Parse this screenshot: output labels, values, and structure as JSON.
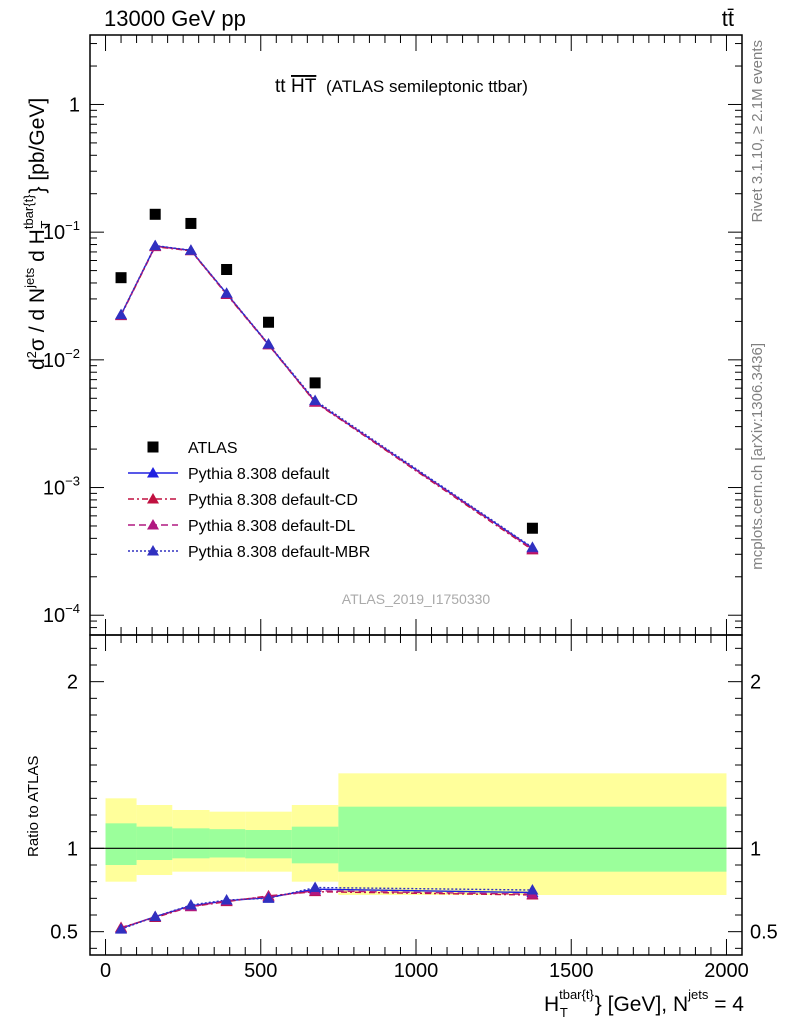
{
  "header": {
    "left": "13000 GeV pp",
    "right": "tt̄"
  },
  "side_labels": {
    "rivet": "Rivet 3.1.10, ≥ 2.1M events",
    "mcplots": "mcplots.cern.ch [arXiv:1306.3436]"
  },
  "chart_data": {
    "type": "line",
    "title_main": "tt",
    "title_over": "HT",
    "title_rest": "(ATLAS semileptonic ttbar)",
    "watermark": "ATLAS_2019_I1750330",
    "ylabel": "d²σ / d N^jets d H_T^tbar{t} [pb/GeV]",
    "xlabel": "H_T^tbar{t} [GeV], N^jets = 4",
    "ratio_ylabel": "Ratio to ATLAS",
    "xlim": [
      -50,
      2050
    ],
    "ylim_log": [
      7e-05,
      3.5
    ],
    "ratio_ylim": [
      0.36,
      2.28
    ],
    "x_ticks": [
      0,
      500,
      1000,
      1500,
      2000
    ],
    "ratio_ticks": [
      0.5,
      1,
      2
    ],
    "y_ticks": [
      {
        "value": 1,
        "base": "1",
        "exp": ""
      },
      {
        "value": 0.1,
        "base": "10",
        "exp": "−1"
      },
      {
        "value": 0.01,
        "base": "10",
        "exp": "−2"
      },
      {
        "value": 0.001,
        "base": "10",
        "exp": "−3"
      },
      {
        "value": 0.0001,
        "base": "10",
        "exp": "−4"
      }
    ],
    "data_points": {
      "name": "ATLAS",
      "x": [
        50,
        160,
        275,
        390,
        525,
        675,
        1375
      ],
      "y": [
        0.044,
        0.138,
        0.117,
        0.051,
        0.0197,
        0.0066,
        0.00048
      ]
    },
    "series": [
      {
        "name": "Pythia 8.308 default",
        "color": "#2020e0",
        "dash": "solid",
        "x": [
          50,
          160,
          275,
          390,
          525,
          675,
          1375
        ],
        "y": [
          0.0225,
          0.078,
          0.072,
          0.033,
          0.0132,
          0.0047,
          0.000335
        ],
        "ratio": [
          0.52,
          0.59,
          0.655,
          0.685,
          0.705,
          0.755,
          0.735
        ]
      },
      {
        "name": "Pythia 8.308 default-CD",
        "color": "#c01040",
        "dash": "6,3,2,3",
        "x": [
          50,
          160,
          275,
          390,
          525,
          675,
          1375
        ],
        "y": [
          0.0222,
          0.077,
          0.0715,
          0.0325,
          0.0131,
          0.00465,
          0.000325
        ],
        "ratio": [
          0.525,
          0.585,
          0.65,
          0.68,
          0.715,
          0.74,
          0.72
        ]
      },
      {
        "name": "Pythia 8.308 default-DL",
        "color": "#b01880",
        "dash": "7,4",
        "x": [
          50,
          160,
          275,
          390,
          525,
          675,
          1375
        ],
        "y": [
          0.0224,
          0.0775,
          0.0718,
          0.0328,
          0.0132,
          0.0047,
          0.00033
        ],
        "ratio": [
          0.52,
          0.59,
          0.65,
          0.685,
          0.71,
          0.745,
          0.725
        ]
      },
      {
        "name": "Pythia 8.308 default-MBR",
        "color": "#3030c0",
        "dash": "2,2",
        "x": [
          50,
          160,
          275,
          390,
          525,
          675,
          1375
        ],
        "y": [
          0.0226,
          0.0785,
          0.0722,
          0.0332,
          0.0133,
          0.0048,
          0.00034
        ],
        "ratio": [
          0.515,
          0.59,
          0.66,
          0.69,
          0.7,
          0.765,
          0.75
        ]
      }
    ],
    "uncertainty_bins": [
      {
        "x0": 0,
        "x1": 100,
        "stat_lo": 0.9,
        "stat_hi": 1.15,
        "tot_lo": 0.8,
        "tot_hi": 1.3
      },
      {
        "x0": 100,
        "x1": 215,
        "stat_lo": 0.93,
        "stat_hi": 1.13,
        "tot_lo": 0.84,
        "tot_hi": 1.26
      },
      {
        "x0": 215,
        "x1": 335,
        "stat_lo": 0.94,
        "stat_hi": 1.12,
        "tot_lo": 0.86,
        "tot_hi": 1.23
      },
      {
        "x0": 335,
        "x1": 450,
        "stat_lo": 0.945,
        "stat_hi": 1.115,
        "tot_lo": 0.86,
        "tot_hi": 1.22
      },
      {
        "x0": 450,
        "x1": 600,
        "stat_lo": 0.94,
        "stat_hi": 1.11,
        "tot_lo": 0.86,
        "tot_hi": 1.22
      },
      {
        "x0": 600,
        "x1": 750,
        "stat_lo": 0.91,
        "stat_hi": 1.13,
        "tot_lo": 0.8,
        "tot_hi": 1.26
      },
      {
        "x0": 750,
        "x1": 2000,
        "stat_lo": 0.86,
        "stat_hi": 1.25,
        "tot_lo": 0.72,
        "tot_hi": 1.45
      }
    ],
    "colors": {
      "stat_band": "#9bff9b",
      "total_band": "#ffff9b",
      "data": "#000000"
    }
  }
}
